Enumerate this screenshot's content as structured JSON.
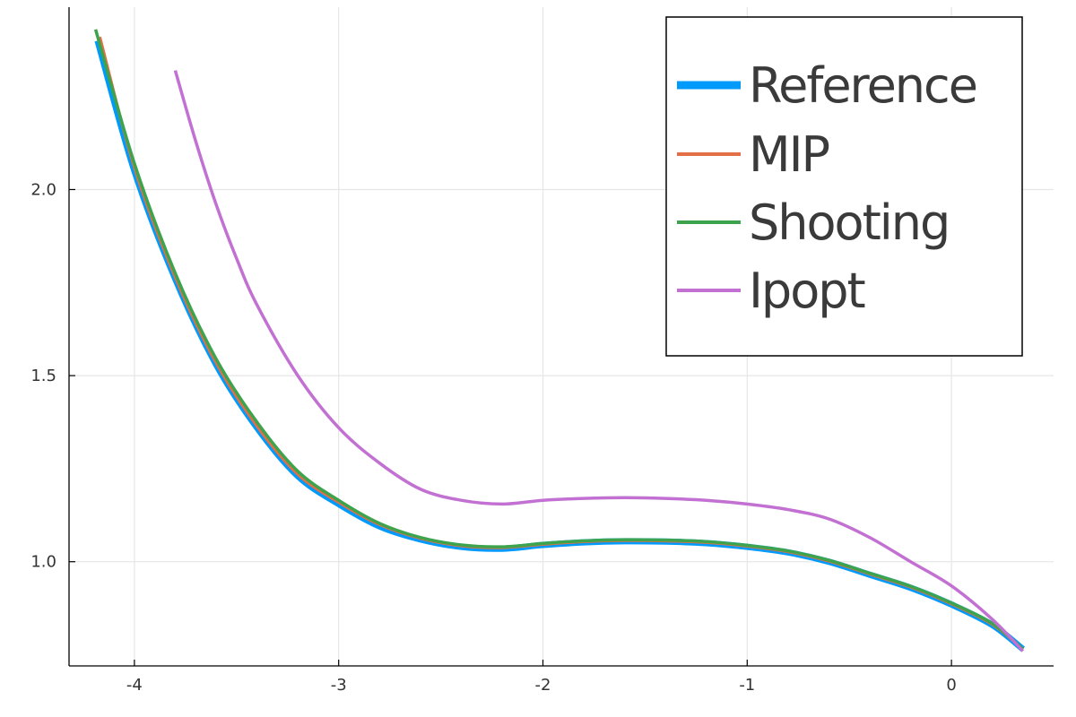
{
  "chart_data": {
    "type": "line",
    "title": "",
    "xlabel": "",
    "ylabel": "",
    "xlim": [
      -4.32,
      0.5
    ],
    "ylim": [
      0.72,
      2.49
    ],
    "xticks": [
      {
        "value": -4,
        "label": "-4"
      },
      {
        "value": -3,
        "label": "-3"
      },
      {
        "value": -2,
        "label": "-2"
      },
      {
        "value": -1,
        "label": "-1"
      },
      {
        "value": 0,
        "label": "0"
      }
    ],
    "yticks": [
      {
        "value": 1.0,
        "label": "1.0"
      },
      {
        "value": 1.5,
        "label": "1.5"
      },
      {
        "value": 2.0,
        "label": "2.0"
      }
    ],
    "grid": true,
    "legend_position": "top-right",
    "series": [
      {
        "name": "Reference",
        "color": "#009AFA",
        "width": 7,
        "legend_width": 9,
        "x": [
          -4.18,
          -4.0,
          -3.8,
          -3.6,
          -3.4,
          -3.2,
          -3.0,
          -2.8,
          -2.6,
          -2.4,
          -2.2,
          -2.0,
          -1.8,
          -1.6,
          -1.4,
          -1.2,
          -1.0,
          -0.8,
          -0.6,
          -0.4,
          -0.2,
          0.0,
          0.2,
          0.35
        ],
        "y": [
          2.4,
          2.05,
          1.76,
          1.53,
          1.36,
          1.23,
          1.155,
          1.095,
          1.06,
          1.04,
          1.035,
          1.045,
          1.052,
          1.055,
          1.054,
          1.05,
          1.04,
          1.025,
          1.0,
          0.965,
          0.93,
          0.885,
          0.83,
          0.765
        ]
      },
      {
        "name": "MIP",
        "color": "#E26F46",
        "width": 3.5,
        "legend_width": 4,
        "x": [
          -4.17,
          -4.0,
          -3.8,
          -3.6,
          -3.4,
          -3.2,
          -3.0,
          -2.8,
          -2.6,
          -2.4,
          -2.2,
          -2.0,
          -1.8,
          -1.6,
          -1.4,
          -1.2,
          -1.0,
          -0.8,
          -0.6,
          -0.4,
          -0.2,
          0.0,
          0.2,
          0.35
        ],
        "y": [
          2.41,
          2.06,
          1.765,
          1.535,
          1.365,
          1.235,
          1.16,
          1.1,
          1.063,
          1.043,
          1.038,
          1.047,
          1.054,
          1.057,
          1.056,
          1.052,
          1.042,
          1.027,
          1.002,
          0.967,
          0.932,
          0.887,
          0.832,
          0.765
        ]
      },
      {
        "name": "Shooting",
        "color": "#3DA44D",
        "width": 3.5,
        "legend_width": 4,
        "x": [
          -4.19,
          -4.0,
          -3.8,
          -3.6,
          -3.4,
          -3.2,
          -3.0,
          -2.8,
          -2.6,
          -2.4,
          -2.2,
          -2.0,
          -1.8,
          -1.6,
          -1.4,
          -1.2,
          -1.0,
          -0.8,
          -0.6,
          -0.4,
          -0.2,
          0.0,
          0.2,
          0.35
        ],
        "y": [
          2.43,
          2.07,
          1.775,
          1.545,
          1.375,
          1.243,
          1.165,
          1.103,
          1.065,
          1.045,
          1.04,
          1.049,
          1.056,
          1.059,
          1.058,
          1.054,
          1.044,
          1.029,
          1.004,
          0.969,
          0.934,
          0.889,
          0.834,
          0.765
        ]
      },
      {
        "name": "Ipopt",
        "color": "#C271D2",
        "width": 3.5,
        "legend_width": 4,
        "x": [
          -3.8,
          -3.7,
          -3.6,
          -3.5,
          -3.4,
          -3.2,
          -3.0,
          -2.8,
          -2.6,
          -2.4,
          -2.2,
          -2.0,
          -1.8,
          -1.6,
          -1.4,
          -1.2,
          -1.0,
          -0.8,
          -0.6,
          -0.4,
          -0.2,
          0.0,
          0.2,
          0.35
        ],
        "y": [
          2.32,
          2.13,
          1.96,
          1.815,
          1.69,
          1.5,
          1.36,
          1.265,
          1.195,
          1.165,
          1.155,
          1.165,
          1.17,
          1.172,
          1.17,
          1.165,
          1.155,
          1.14,
          1.115,
          1.065,
          1.0,
          0.935,
          0.845,
          0.76
        ]
      }
    ]
  }
}
